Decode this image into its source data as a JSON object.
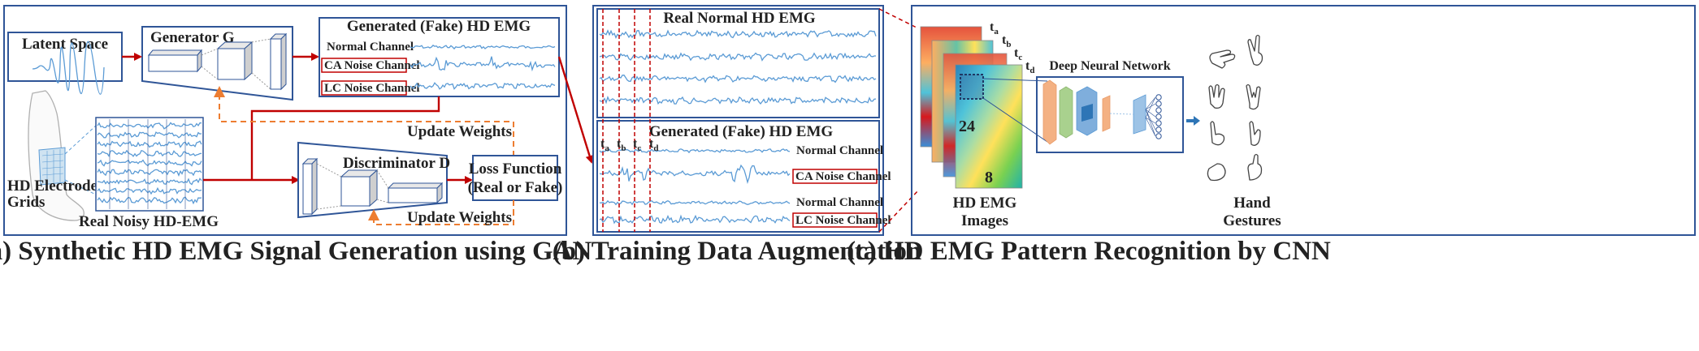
{
  "panels": {
    "a": {
      "caption": "(a) Synthetic HD EMG Signal Generation using GAN",
      "latent_space": "Latent Space",
      "generator": "Generator G",
      "generated_title": "Generated (Fake) HD EMG",
      "normal_channel": "Normal Channel",
      "ca_noise_channel": "CA Noise Channel",
      "lc_noise_channel": "LC Noise Channel",
      "update_weights_top": "Update Weights",
      "update_weights_bottom": "Update Weights",
      "discriminator": "Discriminator D",
      "loss_function_line1": "Loss Function",
      "loss_function_line2": "(Real or Fake)",
      "electrode_line1": "HD Electrode",
      "electrode_line2": "Grids",
      "real_noisy": "Real Noisy HD-EMG"
    },
    "b": {
      "caption": "(b) Training Data Augmentation",
      "real_normal_title": "Real Normal HD EMG",
      "generated_title": "Generated (Fake) HD EMG",
      "normal_channel_1": "Normal Channel",
      "ca_noise_channel": "CA Noise Channel",
      "normal_channel_2": "Normal Channel",
      "lc_noise_channel": "LC Noise Channel",
      "time_markers": [
        "t",
        "t",
        "t",
        "t"
      ],
      "time_subs": [
        "a",
        "b",
        "c",
        "d"
      ]
    },
    "c": {
      "caption": "(c) HD EMG Pattern Recognition by CNN",
      "frame_labels": [
        "t",
        "t",
        "t",
        "t"
      ],
      "frame_subs": [
        "a",
        "b",
        "c",
        "d"
      ],
      "dim_rows": "24",
      "dim_cols": "8",
      "dnn_title": "Deep Neural Network",
      "images_line1": "HD EMG",
      "images_line2": "Images",
      "gestures_line1": "Hand",
      "gestures_line2": "Gestures"
    }
  },
  "colors": {
    "frame_blue": "#2f5597",
    "signal_blue": "#5b9bd5",
    "arrow_red": "#c00000",
    "arrow_orange": "#ed7d31"
  },
  "icons": [
    "arm-icon",
    "hand-gesture-icon",
    "neural-net-icon",
    "heatmap-icon"
  ]
}
